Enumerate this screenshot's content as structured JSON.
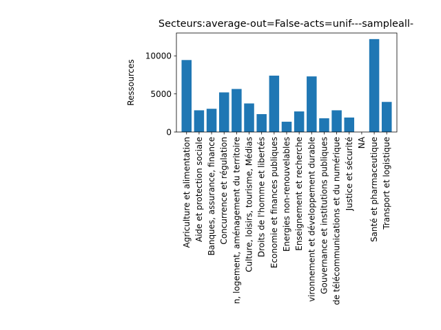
{
  "chart_data": {
    "type": "bar",
    "title": "Secteurs:average-out=False-acts=unif---sampleall-",
    "xlabel": "",
    "ylabel": "Ressources",
    "ylim": [
      0,
      13000
    ],
    "yticks": [
      0,
      5000,
      10000
    ],
    "ytick_labels": [
      "0",
      "5000",
      "10000"
    ],
    "grid": false,
    "color": "#1f77b4",
    "categories": [
      "Agriculture et alimentation",
      "Aide et protection sociale",
      "Banques, assurance, finance",
      "Concurrence et régulation",
      "n, logement, aménagement du territoire",
      "Culture, loisirs, tourisme, Médias",
      "Droits de l'homme et libertés",
      "Economie et finances publiques",
      "Energies non-renouvelables",
      "Enseignement et recherche",
      "vironnement et développement durable",
      "Gouvernance et institutions publiques",
      "de télécommunications et du numérique",
      "Justice et sécurité",
      "NA",
      "Santé et pharmaceutique",
      "Transport et logistique"
    ],
    "values": [
      9450,
      2850,
      3050,
      5200,
      5650,
      3750,
      2350,
      7400,
      1350,
      2700,
      7300,
      1800,
      2850,
      1900,
      0,
      12200,
      3950
    ]
  }
}
